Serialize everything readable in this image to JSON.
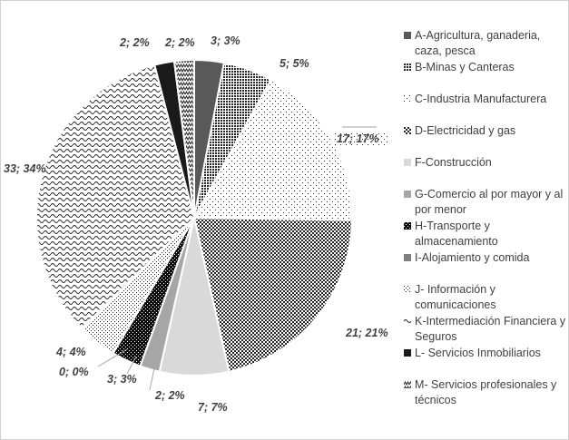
{
  "chart_data": {
    "type": "pie",
    "slices": [
      {
        "key": "A",
        "label": "A-Agricultura, ganaderia, caza, pesca",
        "value": 3,
        "percent": 3,
        "data_label": "3; 3%",
        "pattern": "solid-dark"
      },
      {
        "key": "B",
        "label": "B-Minas y Canteras",
        "value": 5,
        "percent": 5,
        "data_label": "5; 5%",
        "pattern": "dots-dense"
      },
      {
        "key": "C",
        "label": "C-Industria Manufacturera",
        "value": 17,
        "percent": 17,
        "data_label": "17; 17%",
        "pattern": "dots-sparse"
      },
      {
        "key": "D",
        "label": "D-Electricidad y gas",
        "value": 21,
        "percent": 21,
        "data_label": "21; 21%",
        "pattern": "checker"
      },
      {
        "key": "F",
        "label": "F-Construcción",
        "value": 7,
        "percent": 7,
        "data_label": "7; 7%",
        "pattern": "solid-light"
      },
      {
        "key": "G",
        "label": "G-Comercio al por mayor y al por menor",
        "value": 2,
        "percent": 2,
        "data_label": "2; 2%",
        "pattern": "solid-mid"
      },
      {
        "key": "H",
        "label": "H-Transporte y almacenamiento",
        "value": 3,
        "percent": 3,
        "data_label": "3; 3%",
        "pattern": "checker-dark"
      },
      {
        "key": "I",
        "label": "I-Alojamiento y comida",
        "value": 0,
        "percent": 0,
        "data_label": "0; 0%",
        "pattern": "solid-grey"
      },
      {
        "key": "J",
        "label": "J- Información y comunicaciones",
        "value": 4,
        "percent": 4,
        "data_label": "4; 4%",
        "pattern": "dots-light"
      },
      {
        "key": "K",
        "label": "K-Intermediación Financiera y Seguros",
        "value": 33,
        "percent": 34,
        "data_label": "33; 34%",
        "pattern": "waves"
      },
      {
        "key": "L",
        "label": "L- Servicios Inmobiliarios",
        "value": 2,
        "percent": 2,
        "data_label": "2; 2%",
        "pattern": "solid-black"
      },
      {
        "key": "M",
        "label": "M- Servicios profesionales y técnicos",
        "value": 2,
        "percent": 2,
        "data_label": "2; 2%",
        "pattern": "zigzag"
      }
    ],
    "legend_position": "right",
    "colors": {
      "text": "#404040",
      "solid_dark": "#595959",
      "solid_light": "#d9d9d9",
      "solid_mid": "#a6a6a6",
      "solid_grey": "#7f7f7f",
      "solid_black": "#1a1a1a",
      "pattern_ink": "#262626",
      "background": "#ffffff"
    }
  }
}
